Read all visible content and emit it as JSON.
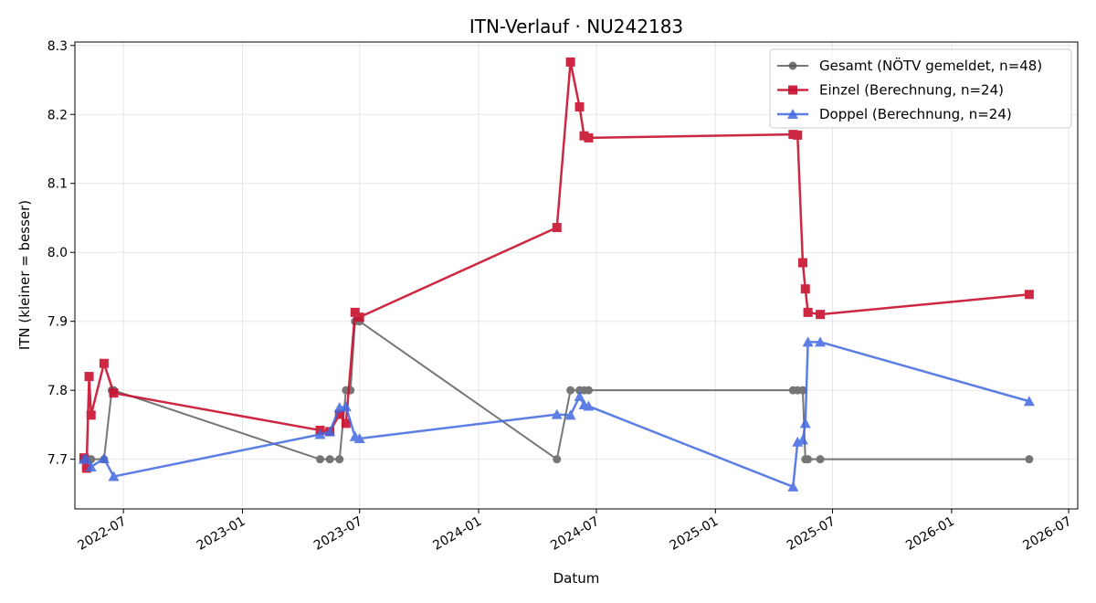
{
  "chart_data": {
    "type": "line",
    "title": "ITN-Verlauf · NU242183",
    "xlabel": "Datum",
    "ylabel": "ITN  (kleiner = besser)",
    "xlim": [
      "2022-04-17",
      "2026-07-15"
    ],
    "ylim": [
      7.628,
      8.305
    ],
    "x_ticks": [
      "2022-07",
      "2023-01",
      "2023-07",
      "2024-01",
      "2024-07",
      "2025-01",
      "2025-07",
      "2026-01",
      "2026-07"
    ],
    "y_ticks": [
      7.7,
      7.8,
      7.9,
      8.0,
      8.1,
      8.2,
      8.3
    ],
    "grid": true,
    "legend_position": "upper-right",
    "series": [
      {
        "name": "Gesamt (NÖTV gemeldet, n=48)",
        "color": "#555555",
        "marker": "circle",
        "points": [
          [
            "2022-05-01",
            7.7
          ],
          [
            "2022-05-05",
            7.7
          ],
          [
            "2022-05-09",
            7.7
          ],
          [
            "2022-05-12",
            7.7
          ],
          [
            "2022-06-01",
            7.7
          ],
          [
            "2022-06-13",
            7.8
          ],
          [
            "2022-06-16",
            7.8
          ],
          [
            "2023-05-01",
            7.7
          ],
          [
            "2023-05-16",
            7.7
          ],
          [
            "2023-05-31",
            7.7
          ],
          [
            "2023-06-10",
            7.8
          ],
          [
            "2023-06-17",
            7.8
          ],
          [
            "2023-06-24",
            7.9
          ],
          [
            "2023-07-01",
            7.9
          ],
          [
            "2024-05-01",
            7.7
          ],
          [
            "2024-05-22",
            7.8
          ],
          [
            "2024-06-05",
            7.8
          ],
          [
            "2024-06-12",
            7.8
          ],
          [
            "2024-06-19",
            7.8
          ],
          [
            "2025-05-01",
            7.8
          ],
          [
            "2025-05-08",
            7.8
          ],
          [
            "2025-05-16",
            7.8
          ],
          [
            "2025-05-20",
            7.7
          ],
          [
            "2025-05-24",
            7.7
          ],
          [
            "2025-06-12",
            7.7
          ],
          [
            "2026-05-01",
            7.7
          ]
        ]
      },
      {
        "name": "Einzel (Berechnung, n=24)",
        "color": "#c8102e",
        "marker": "square",
        "points": [
          [
            "2022-05-01",
            7.702
          ],
          [
            "2022-05-05",
            7.687
          ],
          [
            "2022-05-09",
            7.82
          ],
          [
            "2022-05-12",
            7.764
          ],
          [
            "2022-06-01",
            7.839
          ],
          [
            "2022-06-16",
            7.796
          ],
          [
            "2023-05-01",
            7.742
          ],
          [
            "2023-05-16",
            7.74
          ],
          [
            "2023-05-31",
            7.765
          ],
          [
            "2023-06-10",
            7.752
          ],
          [
            "2023-06-24",
            7.913
          ],
          [
            "2023-07-01",
            7.906
          ],
          [
            "2024-05-01",
            8.036
          ],
          [
            "2024-05-22",
            8.276
          ],
          [
            "2024-06-05",
            8.211
          ],
          [
            "2024-06-12",
            8.169
          ],
          [
            "2024-06-19",
            8.166
          ],
          [
            "2025-05-01",
            8.171
          ],
          [
            "2025-05-08",
            8.17
          ],
          [
            "2025-05-16",
            7.985
          ],
          [
            "2025-05-20",
            7.947
          ],
          [
            "2025-05-24",
            7.913
          ],
          [
            "2025-06-12",
            7.91
          ],
          [
            "2026-05-01",
            7.939
          ]
        ]
      },
      {
        "name": "Doppel (Berechnung, n=24)",
        "color": "#4169e1",
        "marker": "triangle",
        "points": [
          [
            "2022-05-01",
            7.7
          ],
          [
            "2022-05-05",
            7.7
          ],
          [
            "2022-05-12",
            7.689
          ],
          [
            "2022-06-01",
            7.701
          ],
          [
            "2022-06-16",
            7.675
          ],
          [
            "2023-05-01",
            7.736
          ],
          [
            "2023-05-16",
            7.74
          ],
          [
            "2023-05-31",
            7.775
          ],
          [
            "2023-06-10",
            7.776
          ],
          [
            "2023-06-24",
            7.733
          ],
          [
            "2023-07-01",
            7.73
          ],
          [
            "2024-05-01",
            7.765
          ],
          [
            "2024-05-22",
            7.764
          ],
          [
            "2024-06-05",
            7.791
          ],
          [
            "2024-06-12",
            7.779
          ],
          [
            "2024-06-19",
            7.777
          ],
          [
            "2025-05-01",
            7.66
          ],
          [
            "2025-05-08",
            7.725
          ],
          [
            "2025-05-16",
            7.728
          ],
          [
            "2025-05-20",
            7.752
          ],
          [
            "2025-05-24",
            7.87
          ],
          [
            "2025-06-12",
            7.87
          ],
          [
            "2026-05-01",
            7.784
          ]
        ]
      }
    ]
  }
}
